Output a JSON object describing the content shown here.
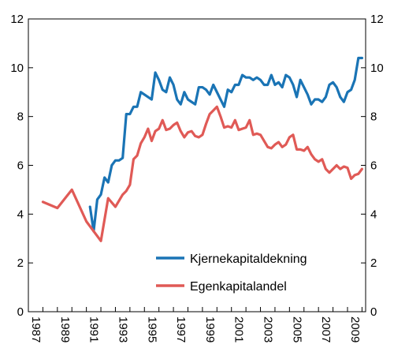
{
  "chart_data": {
    "type": "line",
    "title": "",
    "xlabel": "",
    "ylabel": "",
    "xlim": [
      1987,
      2010.25
    ],
    "ylim": [
      0,
      12
    ],
    "y_ticks": [
      0,
      2,
      4,
      6,
      8,
      10,
      12
    ],
    "y_tick_labels": [
      "0",
      "2",
      "4",
      "6",
      "8",
      "10",
      "12"
    ],
    "x_ticks": [
      1987,
      1989,
      1991,
      1993,
      1995,
      1997,
      1999,
      2001,
      2003,
      2005,
      2007,
      2009
    ],
    "x_tick_labels": [
      "1987",
      "1989",
      "1991",
      "1993",
      "1995",
      "1997",
      "1999",
      "2001",
      "2003",
      "2005",
      "2007",
      "2009"
    ],
    "grid": false,
    "legend_position": "bottom-right",
    "series": [
      {
        "name": "Kjernekapitaldekning",
        "color": "#1a74b5",
        "x": [
          1991.25,
          1991.5,
          1991.75,
          1992.0,
          1992.25,
          1992.5,
          1992.75,
          1993.0,
          1993.25,
          1993.5,
          1993.75,
          1994.0,
          1994.25,
          1994.5,
          1994.75,
          1995.0,
          1995.25,
          1995.5,
          1995.75,
          1996.0,
          1996.25,
          1996.5,
          1996.75,
          1997.0,
          1997.25,
          1997.5,
          1997.75,
          1998.0,
          1998.25,
          1998.5,
          1998.75,
          1999.0,
          1999.25,
          1999.5,
          1999.75,
          2000.0,
          2000.25,
          2000.5,
          2000.75,
          2001.0,
          2001.25,
          2001.5,
          2001.75,
          2002.0,
          2002.25,
          2002.5,
          2002.75,
          2003.0,
          2003.25,
          2003.5,
          2003.75,
          2004.0,
          2004.25,
          2004.5,
          2004.75,
          2005.0,
          2005.25,
          2005.5,
          2005.75,
          2006.0,
          2006.25,
          2006.5,
          2006.75,
          2007.0,
          2007.25,
          2007.5,
          2007.75,
          2008.0,
          2008.25,
          2008.5,
          2008.75,
          2009.0,
          2009.25,
          2009.5,
          2009.75,
          2010.0
        ],
        "values": [
          4.3,
          3.3,
          4.6,
          4.8,
          5.5,
          5.3,
          6.0,
          6.2,
          6.2,
          6.3,
          8.1,
          8.1,
          8.4,
          8.4,
          9.0,
          8.9,
          8.8,
          8.7,
          9.8,
          9.5,
          9.1,
          9.0,
          9.6,
          9.3,
          8.7,
          8.5,
          9.0,
          8.7,
          8.6,
          8.5,
          9.2,
          9.2,
          9.1,
          8.9,
          9.3,
          9.0,
          8.7,
          8.4,
          9.1,
          9.0,
          9.3,
          9.3,
          9.7,
          9.6,
          9.6,
          9.5,
          9.6,
          9.5,
          9.3,
          9.3,
          9.7,
          9.3,
          9.4,
          9.2,
          9.7,
          9.6,
          9.3,
          8.8,
          9.5,
          9.2,
          8.9,
          8.5,
          8.7,
          8.7,
          8.6,
          8.8,
          9.3,
          9.4,
          9.2,
          8.8,
          8.6,
          9.0,
          9.1,
          9.5,
          10.4,
          10.4
        ]
      },
      {
        "name": "Egenkapitalandel",
        "color": "#e05a56",
        "x": [
          1988.0,
          1989.0,
          1990.0,
          1991.0,
          1992.0,
          1992.5,
          1993.0,
          1993.5,
          1993.75,
          1994.0,
          1994.25,
          1994.5,
          1994.75,
          1995.0,
          1995.25,
          1995.5,
          1995.75,
          1996.0,
          1996.25,
          1996.5,
          1996.75,
          1997.0,
          1997.25,
          1997.5,
          1997.75,
          1998.0,
          1998.25,
          1998.5,
          1998.75,
          1999.0,
          1999.25,
          1999.5,
          1999.75,
          2000.0,
          2000.25,
          2000.5,
          2000.75,
          2001.0,
          2001.25,
          2001.5,
          2001.75,
          2002.0,
          2002.25,
          2002.5,
          2002.75,
          2003.0,
          2003.25,
          2003.5,
          2003.75,
          2004.0,
          2004.25,
          2004.5,
          2004.75,
          2005.0,
          2005.25,
          2005.5,
          2005.75,
          2006.0,
          2006.25,
          2006.5,
          2006.75,
          2007.0,
          2007.25,
          2007.5,
          2007.75,
          2008.0,
          2008.25,
          2008.5,
          2008.75,
          2009.0,
          2009.25,
          2009.5,
          2009.75,
          2010.0
        ],
        "values": [
          4.5,
          4.25,
          5.0,
          3.7,
          2.9,
          4.65,
          4.3,
          4.8,
          4.95,
          5.2,
          6.25,
          6.4,
          6.9,
          7.15,
          7.5,
          7.0,
          7.4,
          7.5,
          7.85,
          7.45,
          7.5,
          7.65,
          7.75,
          7.4,
          7.15,
          7.35,
          7.4,
          7.2,
          7.15,
          7.25,
          7.7,
          8.1,
          8.25,
          8.4,
          8.0,
          7.55,
          7.6,
          7.55,
          7.85,
          7.45,
          7.5,
          7.55,
          7.85,
          7.25,
          7.3,
          7.25,
          7.0,
          6.75,
          6.7,
          6.85,
          6.95,
          6.75,
          6.85,
          7.15,
          7.25,
          6.65,
          6.65,
          6.6,
          6.75,
          6.45,
          6.25,
          6.15,
          6.25,
          5.85,
          5.7,
          5.85,
          6.0,
          5.85,
          5.95,
          5.9,
          5.45,
          5.6,
          5.65,
          5.85
        ]
      }
    ]
  }
}
